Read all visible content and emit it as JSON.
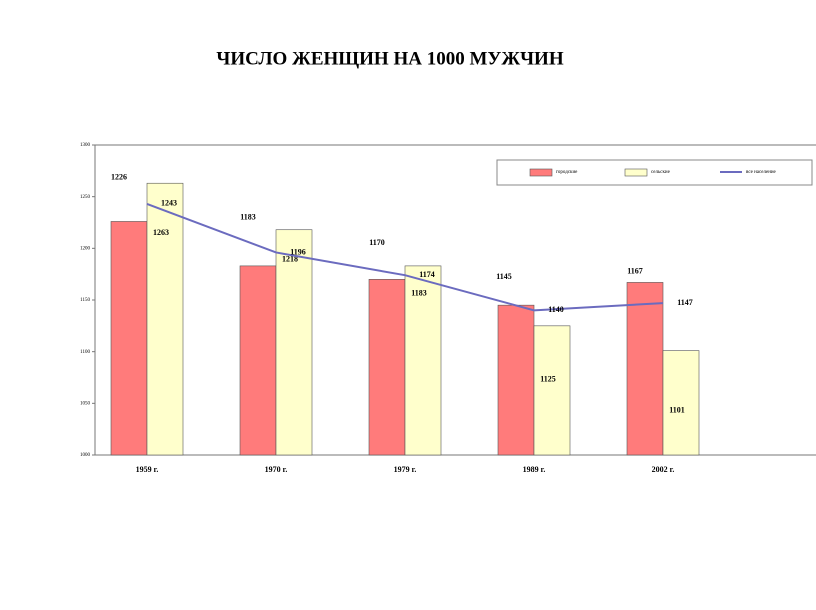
{
  "chart_data": {
    "type": "bar_line",
    "title": "ЧИСЛО ЖЕНЩИН НА 1000 МУЖЧИН",
    "categories": [
      "1959 г.",
      "1970 г.",
      "1979 г.",
      "1989 г.",
      "2002 г."
    ],
    "series": [
      {
        "name": "городские",
        "type": "bar",
        "color": "#ff7b7b",
        "values": [
          1226,
          1183,
          1170,
          1145,
          1167
        ]
      },
      {
        "name": "сельские",
        "type": "bar",
        "color": "#ffffcc",
        "values": [
          1263,
          1218,
          1183,
          1125,
          1101
        ]
      },
      {
        "name": "все население",
        "type": "line",
        "color": "#6b6bbf",
        "values": [
          1243,
          1196,
          1174,
          1140,
          1147
        ]
      }
    ],
    "ylim": [
      1000,
      1300
    ],
    "yticks": [
      1000,
      1050,
      1100,
      1150,
      1200,
      1250,
      1300
    ],
    "grid": false
  }
}
